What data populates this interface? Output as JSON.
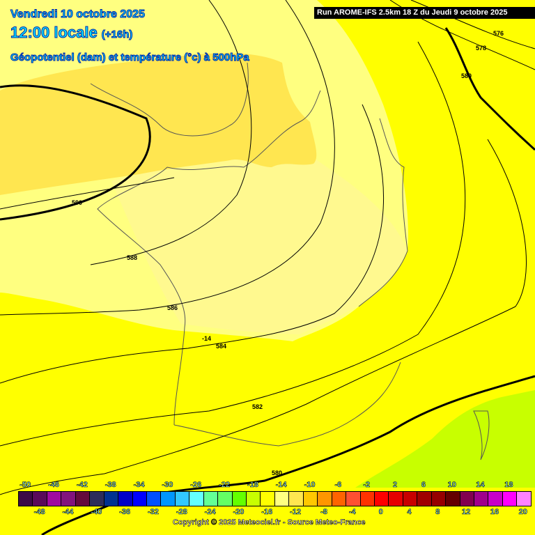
{
  "header": {
    "date": "Vendredi 10 octobre 2025",
    "time": "12:00 locale",
    "lead": "(+16h)",
    "parameter": "Géopotentiel (dam) et température (°c) à 500hPa",
    "run": "Run AROME-IFS 2.5km 18 Z du Jeudi 9 octobre 2025"
  },
  "map": {
    "background_colors": {
      "minus16": "#ffff00",
      "minus14": "#ffff80",
      "minus12": "#ffe650",
      "minus18": "#c8ff00"
    },
    "contour_labels": [
      "576",
      "578",
      "580",
      "590",
      "588",
      "586",
      "584",
      "582",
      "580",
      "-14"
    ]
  },
  "legend": {
    "values": [
      "-50",
      "-48",
      "-46",
      "-44",
      "-42",
      "-40",
      "-38",
      "-36",
      "-34",
      "-32",
      "-30",
      "-28",
      "-26",
      "-24",
      "-22",
      "-20",
      "-18",
      "-16",
      "-14",
      "-12",
      "-10",
      "-8",
      "-6",
      "-4",
      "-2",
      "0",
      "2",
      "4",
      "6",
      "8",
      "10",
      "12",
      "14",
      "16",
      "18",
      "20"
    ],
    "colors": [
      "#3c0a46",
      "#5a0a5a",
      "#a00aa0",
      "#82147d",
      "#640a3c",
      "#2d2d5a",
      "#003291",
      "#0000c8",
      "#0000ff",
      "#0050ff",
      "#0096ff",
      "#32c8ff",
      "#64ffff",
      "#64ff96",
      "#64ff64",
      "#64ff00",
      "#c8ff00",
      "#ffff00",
      "#ffff82",
      "#ffe650",
      "#ffc800",
      "#ff9600",
      "#ff6400",
      "#ff5032",
      "#ff3200",
      "#ff0000",
      "#e60000",
      "#c80000",
      "#a00000",
      "#960000",
      "#640000",
      "#820050",
      "#a0008c",
      "#c800c8",
      "#ff00ff",
      "#ff82ff"
    ]
  },
  "footer": {
    "copyright": "Copyright © 2025 Meteociel.fr - Source Meteo-France"
  }
}
